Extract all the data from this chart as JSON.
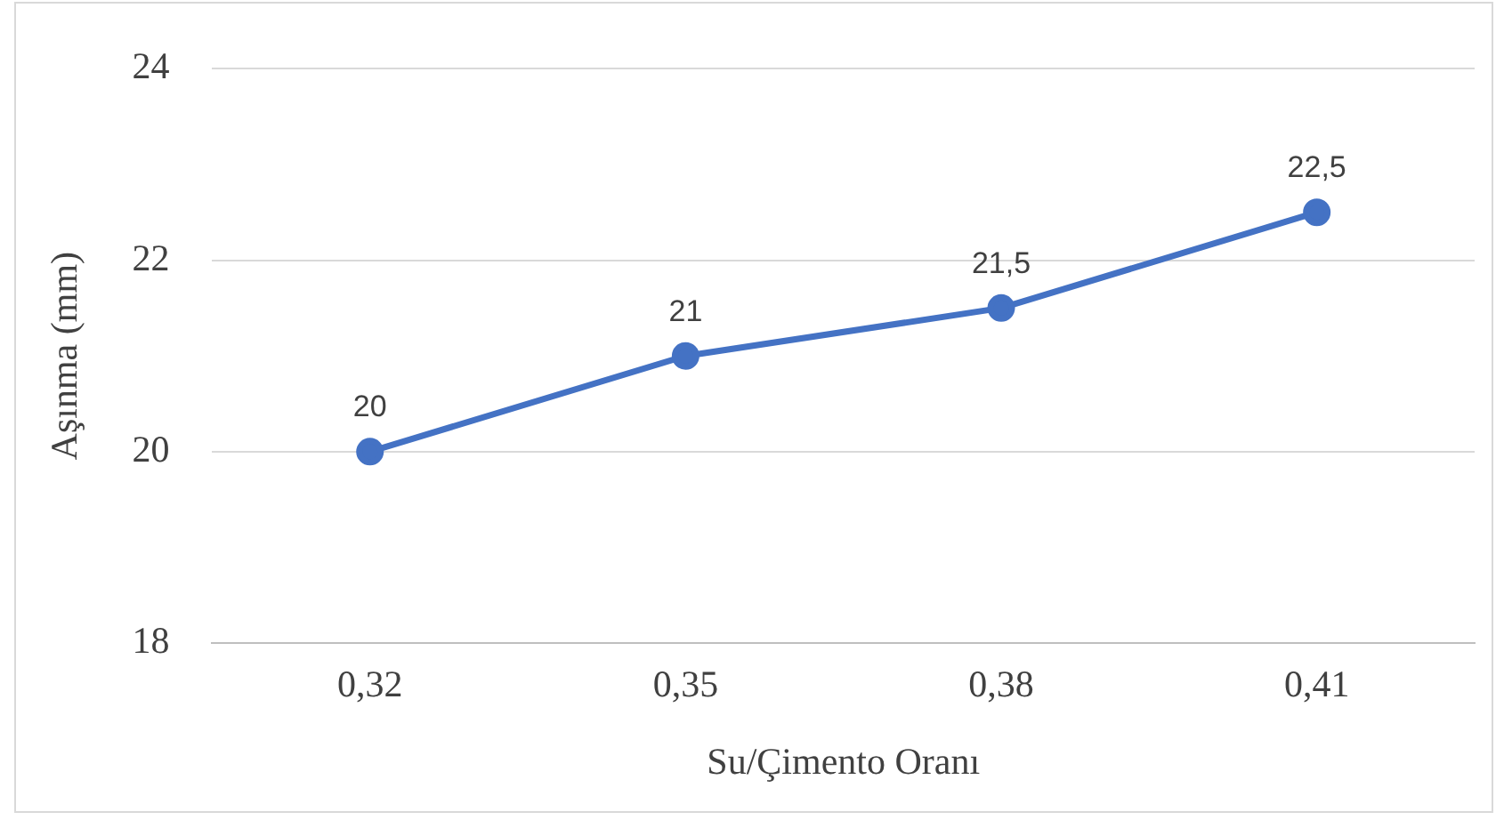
{
  "chart_data": {
    "type": "line",
    "xlabel": "Su/Çimento Oranı",
    "ylabel": "Aşınma (mm)",
    "categories": [
      "0,32",
      "0,35",
      "0,38",
      "0,41"
    ],
    "series": [
      {
        "color": "#4472c4",
        "values": [
          20,
          21,
          21.5,
          22.5
        ],
        "value_labels": [
          "20",
          "21",
          "21,5",
          "22,5"
        ]
      }
    ],
    "ylim": [
      18,
      24
    ],
    "yticks": [
      18,
      20,
      22,
      24
    ],
    "grid": "y",
    "legend": false,
    "marker": "circle",
    "line_style": "solid"
  }
}
